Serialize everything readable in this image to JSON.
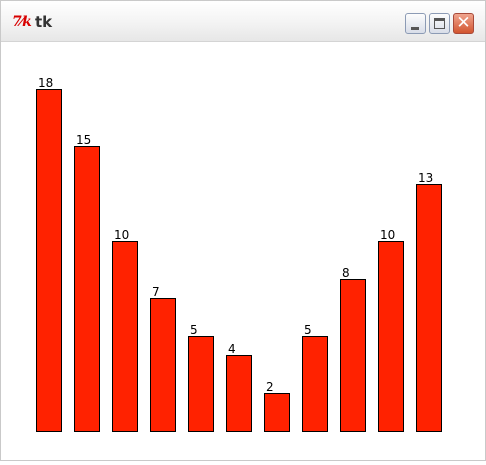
{
  "window": {
    "title": "tk",
    "app_icon": "tk-feather-icon"
  },
  "title_buttons": {
    "minimize": "minimize-icon",
    "maximize": "maximize-icon",
    "close": "close-icon",
    "close_glyph": "✕"
  },
  "colors": {
    "bar_fill": "#ff2200",
    "bar_stroke": "#000000"
  },
  "chart_data": {
    "type": "bar",
    "values": [
      18,
      15,
      10,
      7,
      5,
      4,
      2,
      5,
      8,
      10,
      13
    ],
    "ylim": [
      0,
      18
    ]
  }
}
